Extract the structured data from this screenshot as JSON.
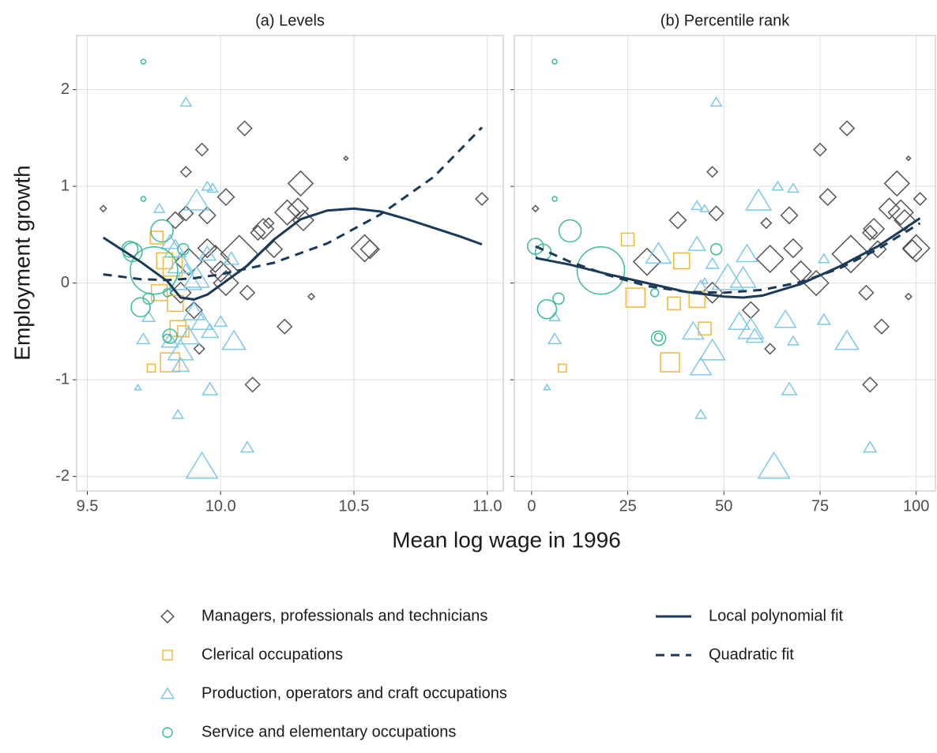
{
  "chart_data": [
    {
      "type": "scatter",
      "title": "(a) Levels",
      "xlabel": "Mean log wage in 1996",
      "ylabel": "Employment growth",
      "xlim": [
        9.46,
        11.06
      ],
      "ylim": [
        -2.15,
        2.56
      ],
      "xticks": [
        9.5,
        {
          "value": 10,
          "label": "10.0"
        },
        10.5,
        {
          "value": 11,
          "label": "11.0"
        }
      ],
      "yticks": [
        -2,
        -1,
        0,
        1,
        2
      ],
      "grid": true,
      "series": [
        {
          "name": "Managers, professionals and technicians",
          "marker": "diamond",
          "color": "#555555",
          "x": [
            9.56,
            10.09,
            9.93,
            9.87,
            10.3,
            10.02,
            10.29,
            10.25,
            10.31,
            9.95,
            9.87,
            9.83,
            10.16,
            10.14,
            10.18,
            10.07,
            9.98,
            9.95,
            10.0,
            10.02,
            10.1,
            9.85,
            9.9,
            9.92,
            10.24,
            10.12,
            10.54,
            10.56,
            10.34,
            10.47,
            10.98,
            9.88,
            10.2
          ],
          "values": [
            0.77,
            1.6,
            1.38,
            1.15,
            1.03,
            0.89,
            0.77,
            0.73,
            0.65,
            0.7,
            0.72,
            0.65,
            0.56,
            0.52,
            0.62,
            0.3,
            0.25,
            0.36,
            0.12,
            0.0,
            -0.1,
            -0.1,
            -0.28,
            -0.68,
            -0.45,
            -1.05,
            0.36,
            0.35,
            -0.14,
            1.29,
            0.87,
            0.22,
            0.35
          ],
          "sizes": [
            3,
            7,
            6,
            5,
            12,
            8,
            10,
            12,
            10,
            8,
            7,
            8,
            10,
            7,
            5,
            18,
            13,
            9,
            10,
            12,
            7,
            10,
            8,
            5,
            7,
            7,
            13,
            9,
            3,
            2,
            6,
            13,
            8
          ]
        },
        {
          "name": "Clerical occupations",
          "marker": "square",
          "color": "#f0b840",
          "x": [
            9.76,
            9.79,
            9.82,
            9.77,
            9.83,
            9.84,
            9.81,
            9.74,
            9.86
          ],
          "values": [
            0.47,
            0.23,
            0.17,
            -0.1,
            -0.21,
            -0.47,
            -0.82,
            -0.88,
            -0.5
          ],
          "sizes": [
            8,
            10,
            12,
            10,
            10,
            10,
            12,
            5,
            7
          ]
        },
        {
          "name": "Production, operators and craft occupations",
          "marker": "triangle",
          "color": "#7ec8e8",
          "x": [
            9.87,
            9.95,
            9.97,
            9.91,
            9.81,
            9.83,
            9.85,
            9.87,
            9.91,
            9.95,
            9.9,
            9.93,
            9.96,
            9.88,
            9.85,
            9.81,
            9.71,
            9.73,
            9.85,
            9.96,
            10.05,
            10.0,
            9.93,
            9.84,
            10.1,
            9.69,
            9.77,
            10.04
          ],
          "values": [
            1.87,
            1.0,
            0.98,
            0.85,
            0.42,
            0.35,
            0.2,
            0.05,
            0.05,
            0.3,
            -0.3,
            -0.4,
            -0.5,
            -0.55,
            -0.7,
            -0.6,
            -0.58,
            -0.35,
            -0.85,
            -1.1,
            -0.6,
            -0.4,
            -1.9,
            -1.36,
            -1.7,
            -1.08,
            0.77,
            0.25
          ],
          "sizes": [
            5,
            5,
            5,
            12,
            8,
            10,
            12,
            15,
            12,
            8,
            10,
            10,
            8,
            10,
            12,
            8,
            6,
            6,
            8,
            7,
            11,
            6,
            15,
            5,
            6,
            3,
            5,
            7
          ]
        },
        {
          "name": "Service and elementary occupations",
          "marker": "circle",
          "color": "#3dbb96",
          "x": [
            9.71,
            9.71,
            9.66,
            9.75,
            9.78,
            9.67,
            9.7,
            9.73,
            9.81,
            9.8,
            9.86,
            9.8
          ],
          "values": [
            2.29,
            0.87,
            0.35,
            0.13,
            0.54,
            0.32,
            -0.25,
            -0.16,
            -0.55,
            -0.57,
            0.35,
            -0.1
          ],
          "sizes": [
            3,
            3,
            10,
            30,
            14,
            12,
            12,
            7,
            9,
            5,
            7,
            5
          ]
        },
        {
          "name": "Local polynomial fit",
          "marker": "line",
          "line_style": "solid",
          "color": "#1b3a57",
          "x": [
            9.56,
            9.7,
            9.8,
            9.85,
            9.9,
            9.95,
            10.0,
            10.1,
            10.2,
            10.3,
            10.4,
            10.5,
            10.6,
            10.7,
            10.8,
            10.9,
            10.98
          ],
          "values": [
            0.47,
            0.22,
            0.02,
            -0.15,
            -0.17,
            -0.12,
            -0.02,
            0.18,
            0.45,
            0.66,
            0.75,
            0.77,
            0.74,
            0.66,
            0.57,
            0.48,
            0.4
          ]
        },
        {
          "name": "Quadratic fit",
          "marker": "line",
          "line_style": "dashed",
          "color": "#1b3a57",
          "x": [
            9.56,
            9.7,
            9.8,
            9.9,
            10.0,
            10.2,
            10.4,
            10.6,
            10.8,
            10.98
          ],
          "values": [
            0.09,
            0.04,
            0.03,
            0.05,
            0.09,
            0.21,
            0.41,
            0.71,
            1.1,
            1.61
          ]
        }
      ]
    },
    {
      "type": "scatter",
      "title": "(b) Percentile rank",
      "xlim": [
        -4.5,
        105
      ],
      "ylim": [
        -2.15,
        2.56
      ],
      "xticks": [
        0,
        25,
        50,
        75,
        100
      ],
      "yticks": [
        -2,
        -1,
        0,
        1,
        2
      ],
      "grid": true,
      "series": [
        {
          "name": "Managers, professionals and technicians",
          "marker": "diamond",
          "color": "#555555",
          "x": [
            1,
            82,
            75,
            47,
            95,
            77,
            93,
            96,
            97,
            67,
            48,
            38,
            89,
            88,
            61,
            83,
            62,
            68,
            70,
            74,
            87,
            47,
            57,
            62,
            91,
            88,
            100,
            99,
            98,
            98,
            101,
            30,
            90
          ],
          "values": [
            0.77,
            1.6,
            1.38,
            1.15,
            1.03,
            0.89,
            0.77,
            0.73,
            0.65,
            0.7,
            0.72,
            0.65,
            0.56,
            0.52,
            0.62,
            0.3,
            0.25,
            0.36,
            0.12,
            0.0,
            -0.1,
            -0.1,
            -0.28,
            -0.68,
            -0.45,
            -1.05,
            0.36,
            0.35,
            -0.14,
            1.29,
            0.87,
            0.22,
            0.35
          ],
          "sizes": [
            3,
            7,
            6,
            5,
            12,
            8,
            10,
            12,
            10,
            8,
            7,
            8,
            10,
            7,
            5,
            18,
            13,
            9,
            10,
            12,
            7,
            10,
            8,
            5,
            7,
            7,
            13,
            9,
            3,
            2,
            6,
            13,
            8
          ]
        },
        {
          "name": "Clerical occupations",
          "marker": "square",
          "color": "#f0b840",
          "x": [
            25,
            39,
            27,
            37,
            43,
            45,
            36,
            8
          ],
          "values": [
            0.45,
            0.23,
            -0.15,
            -0.21,
            -0.17,
            -0.47,
            -0.82,
            -0.88
          ],
          "sizes": [
            8,
            10,
            12,
            8,
            10,
            8,
            12,
            5
          ]
        },
        {
          "name": "Production, operators and craft occupations",
          "marker": "triangle",
          "color": "#7ec8e8",
          "x": [
            48,
            64,
            68,
            59,
            43,
            45,
            33,
            43,
            47,
            51,
            55,
            56,
            54,
            47,
            44,
            42,
            44,
            58,
            66,
            57,
            76,
            82,
            68,
            67,
            63,
            44,
            88,
            4,
            6,
            6,
            45,
            76
          ],
          "values": [
            1.87,
            1.0,
            0.98,
            0.85,
            0.8,
            0.77,
            0.3,
            0.4,
            0.2,
            0.05,
            0.05,
            0.3,
            -0.4,
            -0.7,
            -0.87,
            -0.5,
            -0.05,
            -0.55,
            -0.38,
            -0.48,
            -0.38,
            -0.6,
            -0.6,
            -1.1,
            -1.9,
            -1.36,
            -1.7,
            -1.08,
            -0.58,
            -0.35,
            0.02,
            0.25
          ],
          "sizes": [
            5,
            5,
            5,
            12,
            5,
            4,
            12,
            8,
            6,
            15,
            12,
            10,
            10,
            12,
            10,
            10,
            8,
            8,
            10,
            12,
            6,
            11,
            5,
            7,
            15,
            5,
            6,
            3,
            6,
            5,
            3,
            5
          ]
        },
        {
          "name": "Service and elementary occupations",
          "marker": "circle",
          "color": "#3dbb96",
          "x": [
            6,
            6,
            1,
            18,
            10,
            3,
            4,
            7,
            33,
            33,
            48,
            32
          ],
          "values": [
            2.29,
            0.87,
            0.38,
            0.13,
            0.54,
            0.32,
            -0.27,
            -0.16,
            -0.57,
            -0.56,
            0.35,
            -0.1
          ],
          "sizes": [
            3,
            3,
            10,
            30,
            14,
            10,
            12,
            7,
            9,
            5,
            7,
            5
          ]
        },
        {
          "name": "Local polynomial fit",
          "marker": "line",
          "line_style": "solid",
          "color": "#1b3a57",
          "x": [
            1,
            10,
            20,
            30,
            40,
            50,
            55,
            60,
            70,
            80,
            90,
            101
          ],
          "values": [
            0.26,
            0.19,
            0.09,
            0.0,
            -0.09,
            -0.14,
            -0.15,
            -0.13,
            -0.01,
            0.17,
            0.38,
            0.67
          ]
        },
        {
          "name": "Quadratic fit",
          "marker": "line",
          "line_style": "dashed",
          "color": "#1b3a57",
          "x": [
            1,
            10,
            20,
            30,
            40,
            50,
            60,
            70,
            80,
            90,
            101
          ],
          "values": [
            0.38,
            0.22,
            0.08,
            -0.03,
            -0.09,
            -0.1,
            -0.07,
            0.01,
            0.15,
            0.35,
            0.62
          ]
        }
      ]
    }
  ]
}
